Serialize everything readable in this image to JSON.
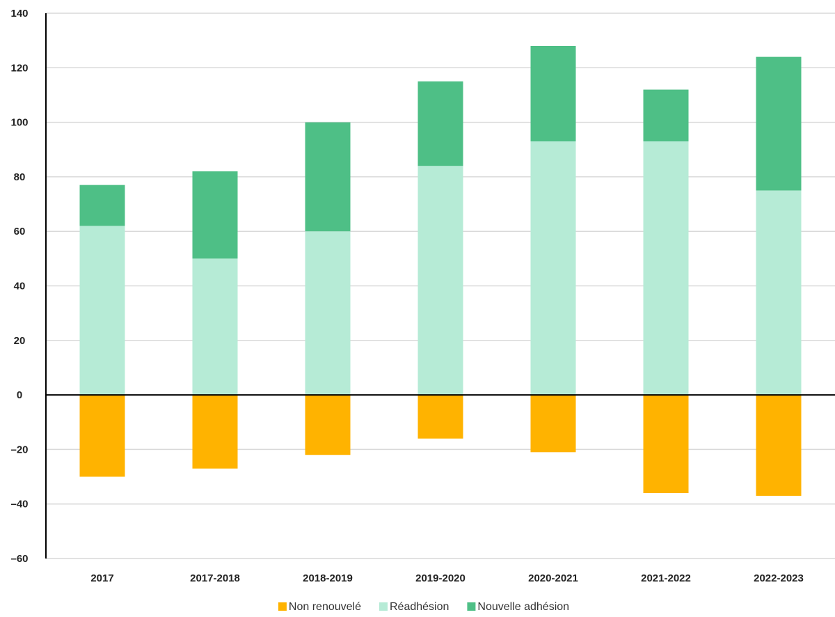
{
  "chart_data": {
    "type": "bar",
    "stacked": true,
    "categories": [
      "2017",
      "2017-2018",
      "2018-2019",
      "2019-2020",
      "2020-2021",
      "2021-2022",
      "2022-2023"
    ],
    "series": [
      {
        "name": "Non renouvelé",
        "values": [
          -30,
          -27,
          -22,
          -16,
          -21,
          -36,
          -37
        ],
        "color": "#FFB300"
      },
      {
        "name": "Réadhésion",
        "values": [
          62,
          50,
          60,
          84,
          93,
          93,
          75
        ],
        "color": "#B6EBD6"
      },
      {
        "name": "Nouvelle adhésion",
        "values": [
          15,
          32,
          40,
          31,
          35,
          19,
          49
        ],
        "color": "#4EBF86"
      }
    ],
    "ylim": [
      -60,
      140
    ],
    "yticks": [
      140,
      120,
      100,
      80,
      60,
      40,
      20,
      0,
      -20,
      -40,
      -60
    ],
    "ytick_labels": [
      "140",
      "120",
      "100",
      "80",
      "60",
      "40",
      "20",
      "0",
      "–20",
      "–40",
      "–60"
    ],
    "grid": true,
    "legend": "bottom-center",
    "title": "",
    "xlabel": "",
    "ylabel": ""
  }
}
